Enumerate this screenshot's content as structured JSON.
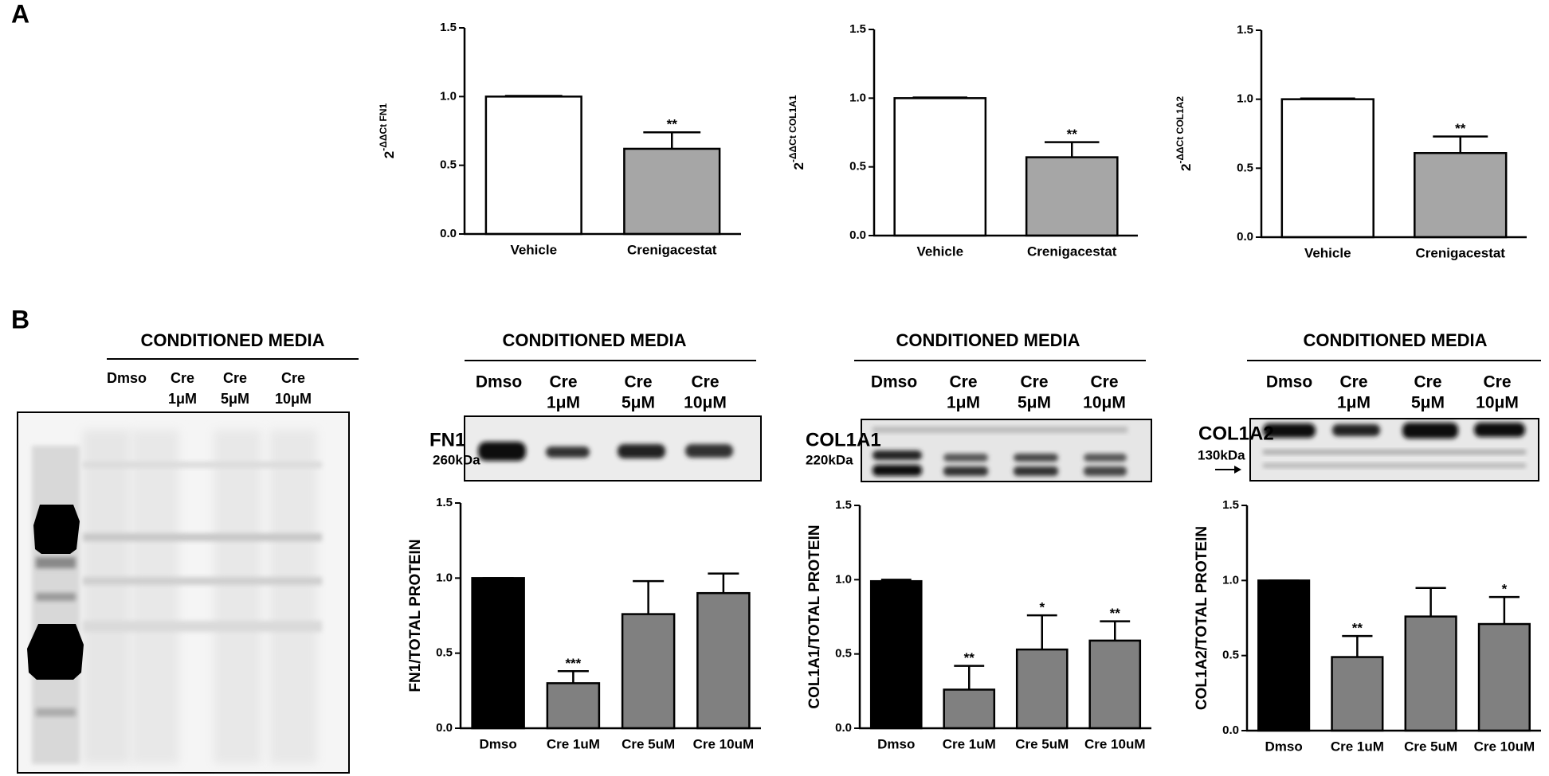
{
  "panel_labels": [
    "A",
    "B"
  ],
  "chart_data": [
    {
      "type": "bar",
      "categories": [
        "Vehicle",
        "Crenigacestat"
      ],
      "values": [
        1.0,
        0.62
      ],
      "errors": [
        0.005,
        0.12
      ],
      "colors": [
        "#ffffff",
        "#a6a6a6"
      ],
      "significance": [
        null,
        "**"
      ],
      "ylim": [
        0,
        1.5
      ],
      "yticks": [
        {
          "value": 0,
          "label": "0.0"
        },
        0.5,
        {
          "value": 1,
          "label": "1.0"
        },
        1.5
      ],
      "ylabel": {
        "base": "2",
        "exponent": "-ΔΔCt FN1"
      }
    },
    {
      "type": "bar",
      "categories": [
        "Vehicle",
        "Crenigacestat"
      ],
      "values": [
        1.0,
        0.57
      ],
      "errors": [
        0.005,
        0.11
      ],
      "colors": [
        "#ffffff",
        "#a6a6a6"
      ],
      "significance": [
        null,
        "**"
      ],
      "ylim": [
        0,
        1.5
      ],
      "yticks": [
        {
          "value": 0,
          "label": "0.0"
        },
        0.5,
        {
          "value": 1,
          "label": "1.0"
        },
        1.5
      ],
      "ylabel": {
        "base": "2",
        "exponent": "-ΔΔCt COL1A1"
      }
    },
    {
      "type": "bar",
      "categories": [
        "Vehicle",
        "Crenigacestat"
      ],
      "values": [
        1.0,
        0.61
      ],
      "errors": [
        0.005,
        0.12
      ],
      "colors": [
        "#ffffff",
        "#a6a6a6"
      ],
      "significance": [
        null,
        "**"
      ],
      "ylim": [
        0,
        1.5
      ],
      "yticks": [
        {
          "value": 0,
          "label": "0.0"
        },
        0.5,
        {
          "value": 1,
          "label": "1.0"
        },
        1.5
      ],
      "ylabel": {
        "base": "2",
        "exponent": "-ΔΔCt COL1A2"
      }
    },
    {
      "type": "bar",
      "categories": [
        "Dmso",
        "Cre 1uM",
        "Cre 5uM",
        "Cre 10uM"
      ],
      "values": [
        1.0,
        0.3,
        0.76,
        0.9
      ],
      "errors": [
        0,
        0.08,
        0.22,
        0.13
      ],
      "colors": [
        "#000000",
        "#808080",
        "#808080",
        "#808080"
      ],
      "significance": [
        null,
        "***",
        null,
        null
      ],
      "ylim": [
        0,
        1.5
      ],
      "yticks": [
        {
          "value": 0,
          "label": "0.0"
        },
        0.5,
        {
          "value": 1,
          "label": "1.0"
        },
        1.5
      ],
      "ylabel": "FN1/TOTAL PROTEIN"
    },
    {
      "type": "bar",
      "categories": [
        "Dmso",
        "Cre 1uM",
        "Cre 5uM",
        "Cre 10uM"
      ],
      "values": [
        0.99,
        0.26,
        0.53,
        0.59
      ],
      "errors": [
        0.01,
        0.16,
        0.23,
        0.13
      ],
      "colors": [
        "#000000",
        "#808080",
        "#808080",
        "#808080"
      ],
      "significance": [
        null,
        "**",
        "*",
        "**"
      ],
      "ylim": [
        0,
        1.5
      ],
      "yticks": [
        {
          "value": 0,
          "label": "0.0"
        },
        0.5,
        {
          "value": 1,
          "label": "1.0"
        },
        1.5
      ],
      "ylabel": "COL1A1/TOTAL PROTEIN"
    },
    {
      "type": "bar",
      "categories": [
        "Dmso",
        "Cre 1uM",
        "Cre 5uM",
        "Cre 10uM"
      ],
      "values": [
        1.0,
        0.49,
        0.76,
        0.71
      ],
      "errors": [
        0,
        0.14,
        0.19,
        0.18
      ],
      "colors": [
        "#000000",
        "#808080",
        "#808080",
        "#808080"
      ],
      "significance": [
        null,
        "**",
        null,
        "*"
      ],
      "ylim": [
        0,
        1.5
      ],
      "yticks": [
        {
          "value": 0,
          "label": "0.0"
        },
        0.5,
        {
          "value": 1,
          "label": "1.0"
        },
        1.5
      ],
      "ylabel": "COL1A2/TOTAL PROTEIN"
    }
  ],
  "blots": [
    {
      "header": "CONDITIONED MEDIA",
      "lanes": [
        [
          "Dmso"
        ],
        [
          "Cre",
          "1μM"
        ],
        [
          "Cre",
          "5μM"
        ],
        [
          "Cre",
          "10μM"
        ]
      ]
    },
    {
      "header": "CONDITIONED MEDIA",
      "lanes": [
        [
          "Dmso"
        ],
        [
          "Cre",
          "1μM"
        ],
        [
          "Cre",
          "5μM"
        ],
        [
          "Cre",
          "10μM"
        ]
      ],
      "protein": "FN1",
      "size": "260kDa"
    },
    {
      "header": "CONDITIONED MEDIA",
      "lanes": [
        [
          "Dmso"
        ],
        [
          "Cre",
          "1μM"
        ],
        [
          "Cre",
          "5μM"
        ],
        [
          "Cre",
          "10μM"
        ]
      ],
      "protein": "COL1A1",
      "size": "220kDa"
    },
    {
      "header": "CONDITIONED MEDIA",
      "lanes": [
        [
          "Dmso"
        ],
        [
          "Cre",
          "1μM"
        ],
        [
          "Cre",
          "5μM"
        ],
        [
          "Cre",
          "10μM"
        ]
      ],
      "protein": "COL1A2",
      "size": "130kDa"
    }
  ]
}
